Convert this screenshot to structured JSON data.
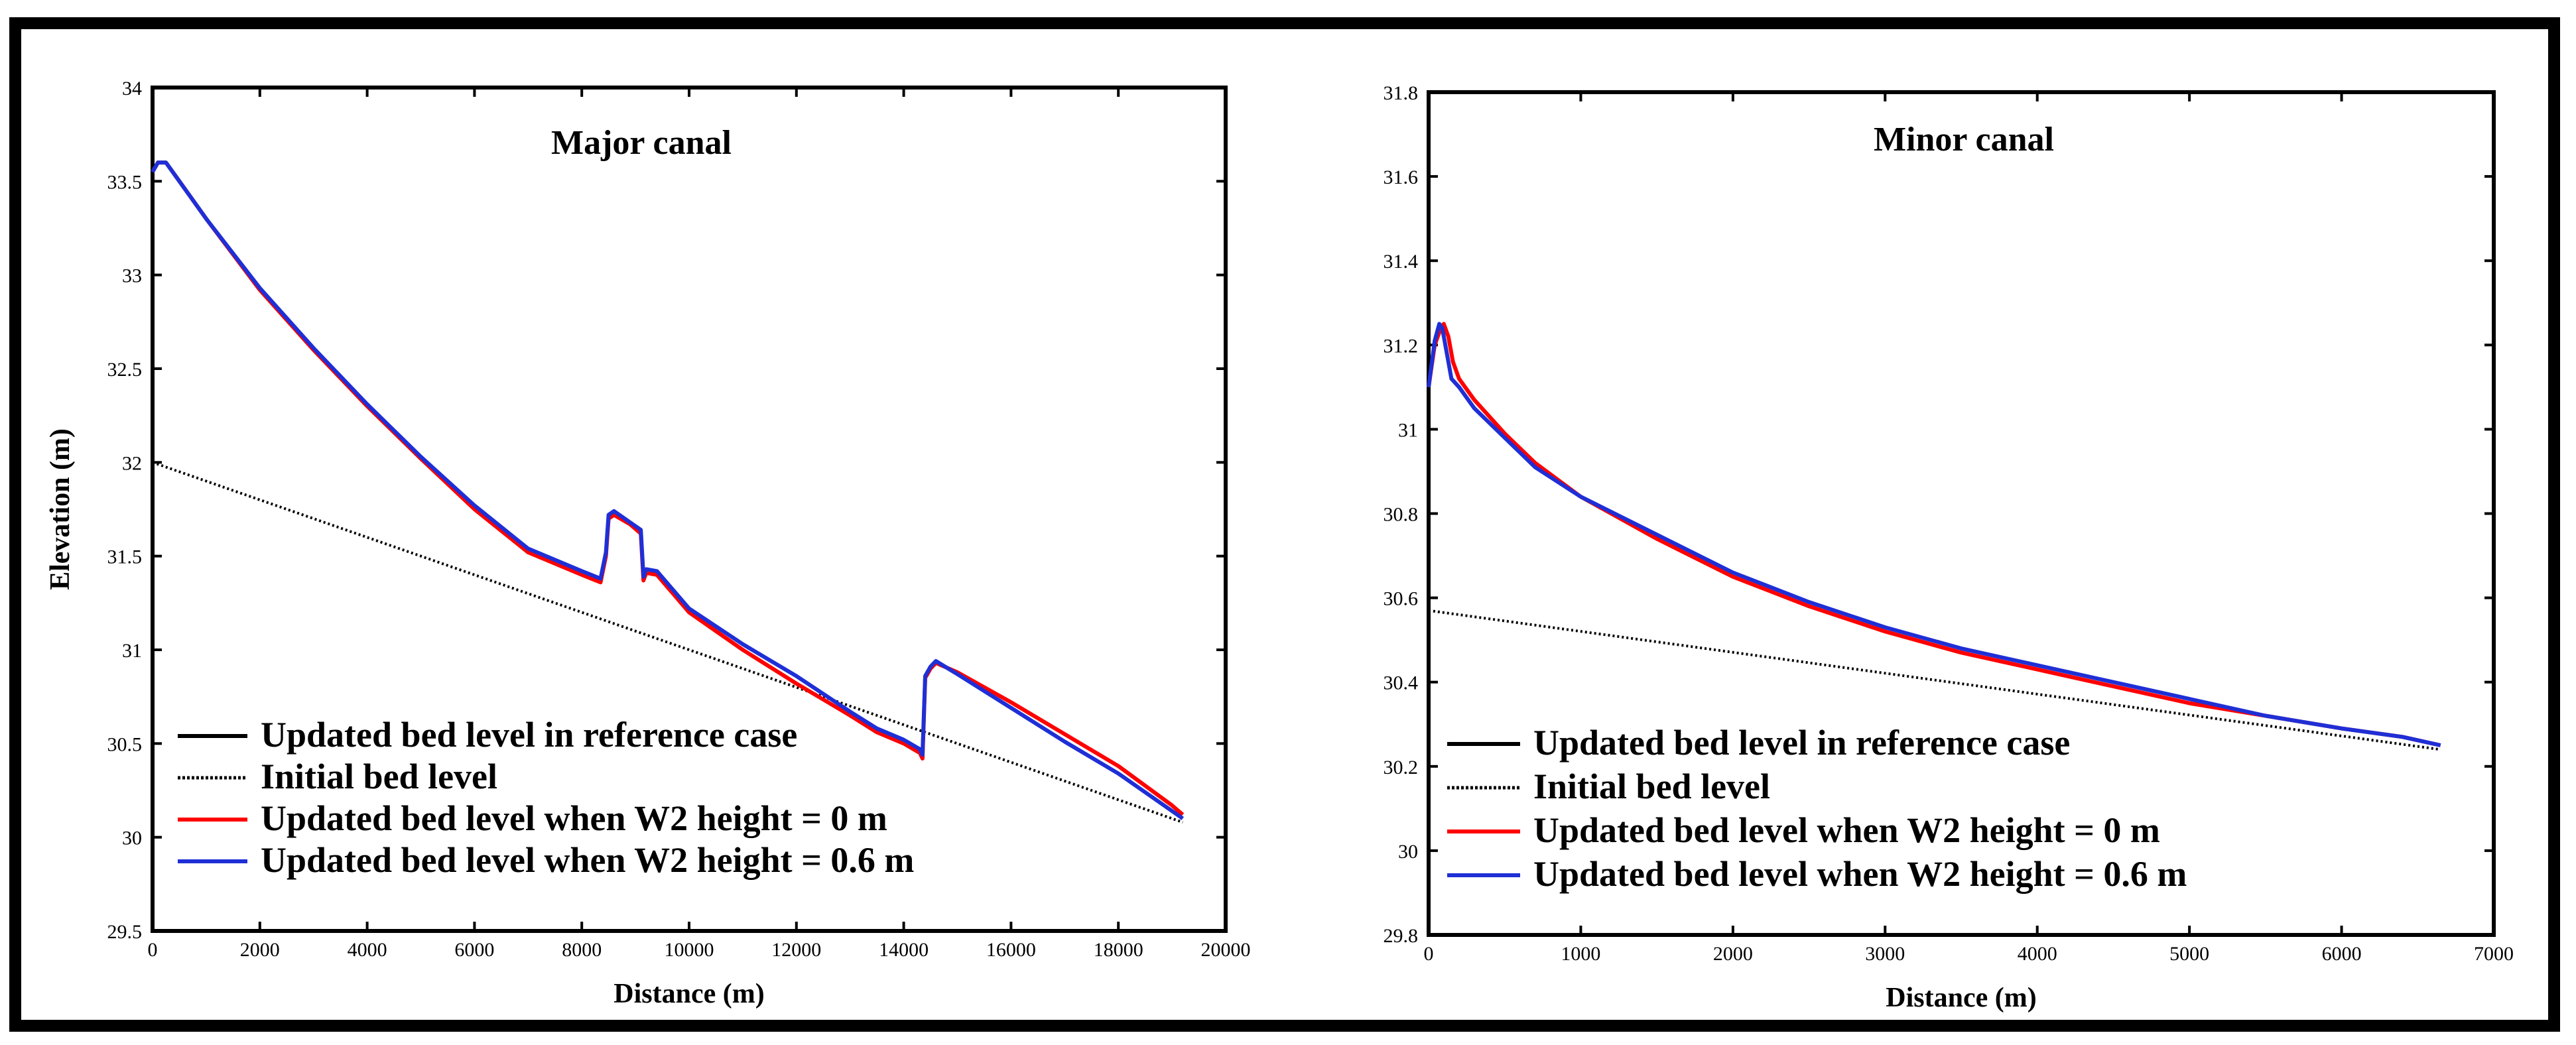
{
  "chart_data": [
    {
      "type": "line",
      "title": "Major canal",
      "xlabel": "Distance (m)",
      "ylabel": "Elevation (m)",
      "xlim": [
        0,
        20000
      ],
      "ylim": [
        29.5,
        34
      ],
      "x_ticks": [
        0,
        2000,
        4000,
        6000,
        8000,
        10000,
        12000,
        14000,
        16000,
        18000,
        20000
      ],
      "x_tick_labels": [
        "0",
        "2000",
        "4000",
        "6000",
        "8000",
        "10000",
        "12000",
        "14000",
        "16000",
        "18000",
        "20000"
      ],
      "y_ticks": [
        29.5,
        30,
        30.5,
        31,
        31.5,
        32,
        32.5,
        33,
        33.5,
        34
      ],
      "y_tick_labels": [
        "29.5",
        "30",
        "30.5",
        "31",
        "31.5",
        "32",
        "32.5",
        "33",
        "33.5",
        "34"
      ],
      "legend_position": "lower-left",
      "series": [
        {
          "name": "Updated bed level in reference case",
          "color": "#000000",
          "style": "solid",
          "x": [],
          "y": []
        },
        {
          "name": "Initial bed level",
          "color": "#000000",
          "style": "dotted",
          "x": [
            0,
            19200
          ],
          "y": [
            32.0,
            30.08
          ]
        },
        {
          "name": "Updated bed level when W2 height = 0 m",
          "color": "#ff0000",
          "style": "solid",
          "x": [
            0,
            100,
            250,
            500,
            1000,
            2000,
            3000,
            4000,
            5000,
            6000,
            7000,
            8000,
            8350,
            8450,
            8500,
            8600,
            8900,
            9100,
            9150,
            9200,
            9400,
            10000,
            11000,
            12000,
            13000,
            13500,
            14000,
            14300,
            14350,
            14400,
            14500,
            14600,
            15000,
            16000,
            17000,
            18000,
            19000,
            19200
          ],
          "y": [
            33.55,
            33.6,
            33.6,
            33.5,
            33.3,
            32.92,
            32.6,
            32.3,
            32.02,
            31.75,
            31.52,
            31.4,
            31.36,
            31.5,
            31.7,
            31.72,
            31.67,
            31.62,
            31.37,
            31.41,
            31.4,
            31.2,
            31.0,
            30.82,
            30.65,
            30.56,
            30.5,
            30.45,
            30.42,
            30.85,
            30.9,
            30.93,
            30.88,
            30.72,
            30.55,
            30.38,
            30.17,
            30.12
          ]
        },
        {
          "name": "Updated bed level when W2 height = 0.6 m",
          "color": "#1f2fd6",
          "style": "solid",
          "x": [
            0,
            100,
            250,
            500,
            1000,
            2000,
            3000,
            4000,
            5000,
            6000,
            7000,
            8000,
            8350,
            8450,
            8500,
            8600,
            8900,
            9100,
            9150,
            9200,
            9400,
            10000,
            11000,
            12000,
            13000,
            13500,
            14000,
            14300,
            14350,
            14400,
            14500,
            14600,
            15000,
            16000,
            17000,
            18000,
            19000,
            19200
          ],
          "y": [
            33.55,
            33.6,
            33.6,
            33.5,
            33.3,
            32.93,
            32.61,
            32.31,
            32.03,
            31.77,
            31.54,
            31.42,
            31.38,
            31.52,
            31.72,
            31.74,
            31.68,
            31.64,
            31.39,
            31.43,
            31.42,
            31.22,
            31.03,
            30.86,
            30.67,
            30.58,
            30.52,
            30.47,
            30.44,
            30.86,
            30.91,
            30.94,
            30.87,
            30.69,
            30.51,
            30.34,
            30.14,
            30.1
          ]
        }
      ]
    },
    {
      "type": "line",
      "title": "Minor canal",
      "xlabel": "Distance (m)",
      "ylabel": "",
      "xlim": [
        0,
        7000
      ],
      "ylim": [
        29.8,
        31.8
      ],
      "x_ticks": [
        0,
        1000,
        2000,
        3000,
        4000,
        5000,
        6000,
        7000
      ],
      "x_tick_labels": [
        "0",
        "1000",
        "2000",
        "3000",
        "4000",
        "5000",
        "6000",
        "7000"
      ],
      "y_ticks": [
        29.8,
        30,
        30.2,
        30.4,
        30.6,
        30.8,
        31,
        31.2,
        31.4,
        31.6,
        31.8
      ],
      "y_tick_labels": [
        "29.8",
        "30",
        "30.2",
        "30.4",
        "30.6",
        "30.8",
        "31",
        "31.2",
        "31.4",
        "31.6",
        "31.8"
      ],
      "legend_position": "lower-left",
      "series": [
        {
          "name": "Updated bed level in reference case",
          "color": "#000000",
          "style": "solid",
          "x": [],
          "y": []
        },
        {
          "name": "Initial bed level",
          "color": "#000000",
          "style": "dotted",
          "x": [
            0,
            6650
          ],
          "y": [
            30.57,
            30.24
          ]
        },
        {
          "name": "Updated bed level when W2 height = 0 m",
          "color": "#ff0000",
          "style": "solid",
          "x": [
            0,
            40,
            80,
            100,
            130,
            160,
            200,
            300,
            500,
            700,
            1000,
            1500,
            2000,
            2500,
            3000,
            3500,
            4000,
            4500,
            5000,
            5500,
            6000,
            6400,
            6650
          ],
          "y": [
            31.1,
            31.2,
            31.24,
            31.25,
            31.22,
            31.16,
            31.12,
            31.07,
            30.99,
            30.92,
            30.84,
            30.74,
            30.65,
            30.58,
            30.52,
            30.47,
            30.43,
            30.39,
            30.35,
            30.32,
            30.29,
            30.27,
            30.25
          ]
        },
        {
          "name": "Updated bed level when W2 height = 0.6 m",
          "color": "#1f2fd6",
          "style": "solid",
          "x": [
            0,
            40,
            70,
            90,
            120,
            150,
            200,
            300,
            500,
            700,
            1000,
            1500,
            2000,
            2500,
            3000,
            3500,
            4000,
            4500,
            5000,
            5500,
            6000,
            6400,
            6650
          ],
          "y": [
            31.1,
            31.21,
            31.25,
            31.24,
            31.18,
            31.12,
            31.1,
            31.05,
            30.98,
            30.91,
            30.84,
            30.75,
            30.66,
            30.59,
            30.53,
            30.48,
            30.44,
            30.4,
            30.36,
            30.32,
            30.29,
            30.27,
            30.25
          ]
        }
      ]
    }
  ]
}
